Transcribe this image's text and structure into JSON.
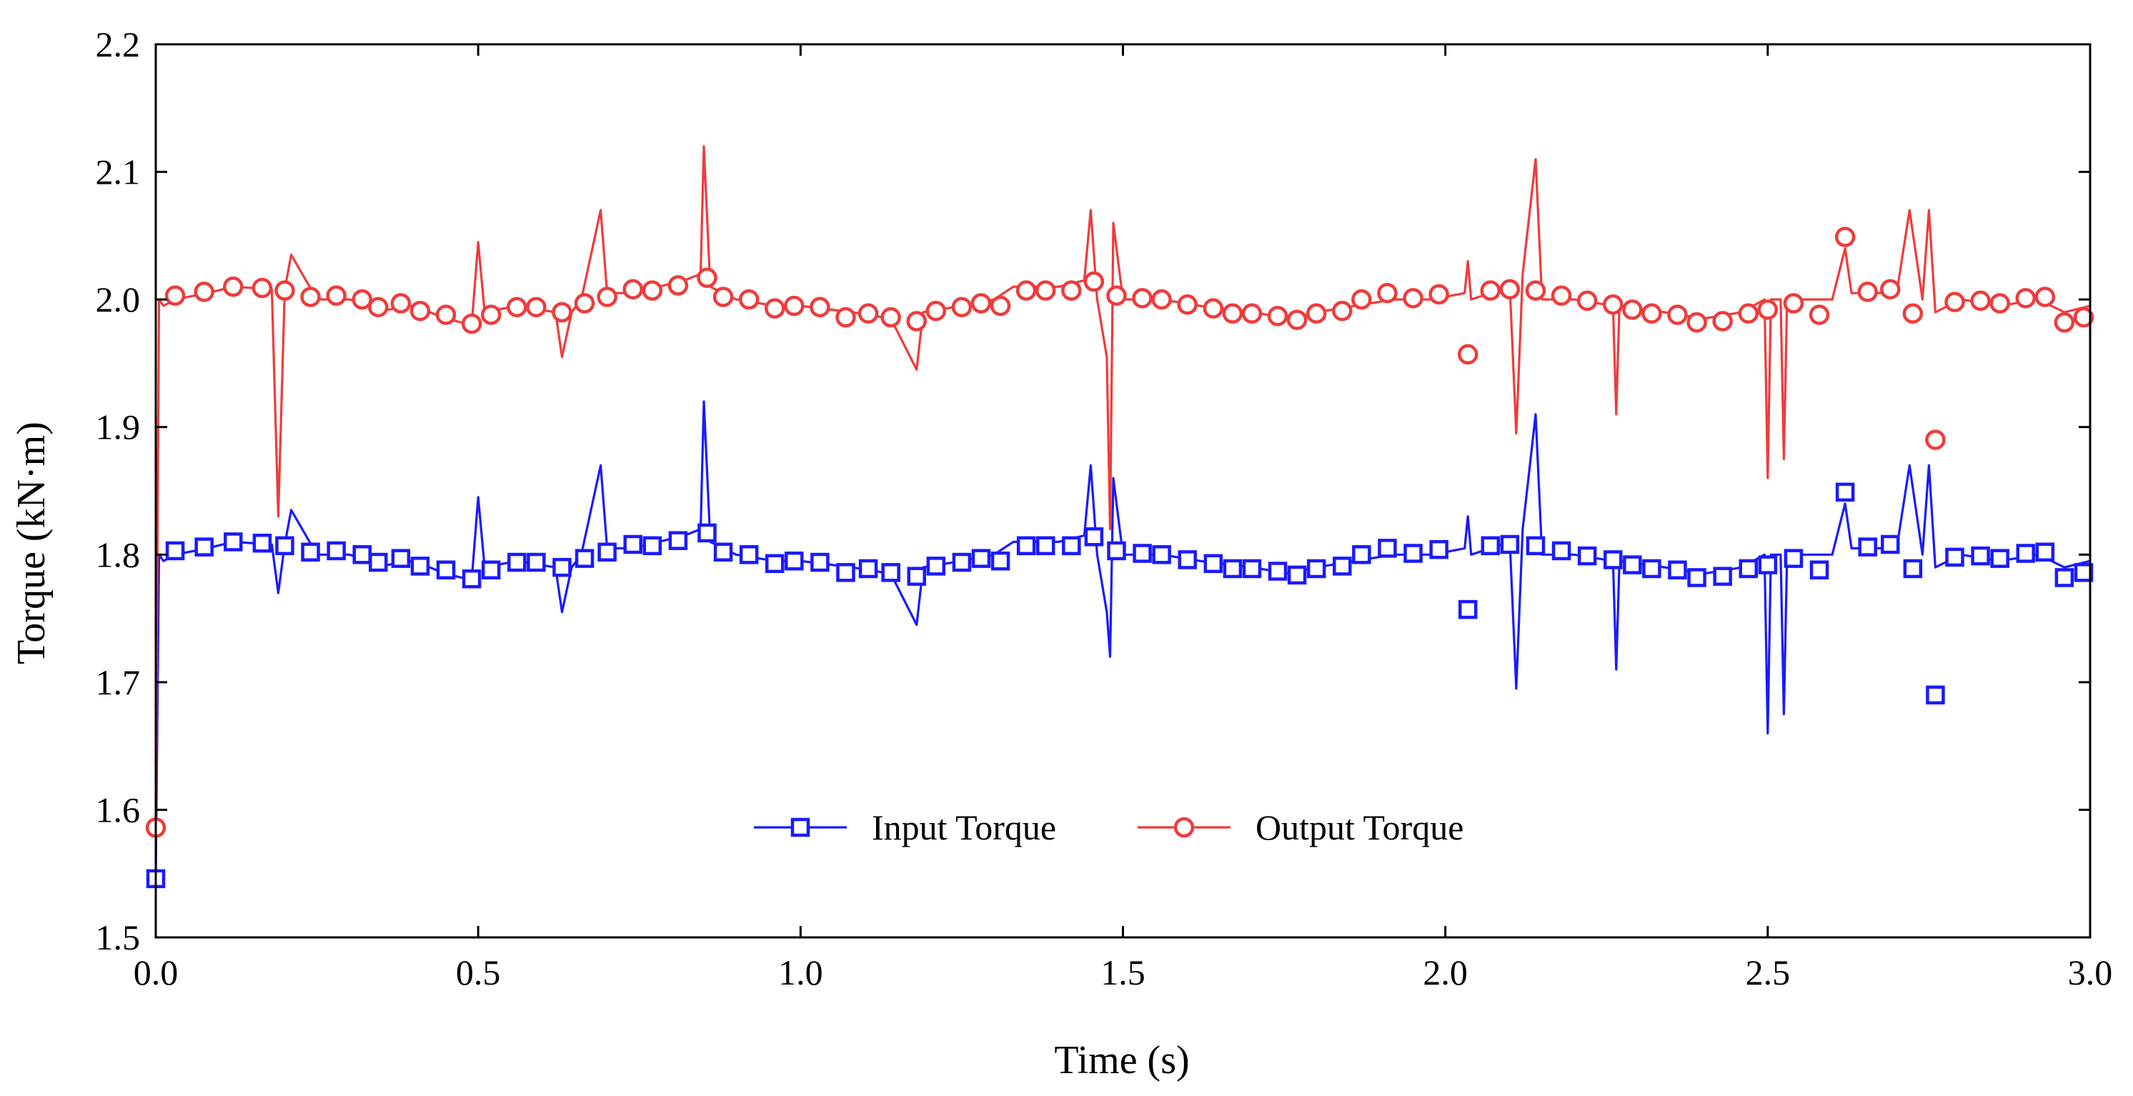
{
  "chart_data": {
    "type": "line",
    "title": "",
    "xlabel": "Time (s)",
    "ylabel": "Torque (kN·m)",
    "xlim": [
      0.0,
      3.0
    ],
    "ylim": [
      1.5,
      2.2
    ],
    "x_ticks": [
      "0.0",
      "0.5",
      "1.0",
      "1.5",
      "2.0",
      "2.5",
      "3.0"
    ],
    "y_ticks": [
      "1.5",
      "1.6",
      "1.7",
      "1.8",
      "1.9",
      "2.0",
      "2.1",
      "2.2"
    ],
    "grid": false,
    "legend_position": "bottom-center",
    "series": [
      {
        "name": "Input Torque",
        "color": "#1a1aff",
        "marker": "square",
        "line_x": [
          0.0,
          0.005,
          0.012,
          0.03,
          0.08,
          0.12,
          0.18,
          0.19,
          0.2,
          0.21,
          0.25,
          0.3,
          0.36,
          0.4,
          0.45,
          0.49,
          0.5,
          0.51,
          0.56,
          0.62,
          0.63,
          0.645,
          0.66,
          0.69,
          0.7,
          0.74,
          0.78,
          0.82,
          0.845,
          0.85,
          0.86,
          0.9,
          0.96,
          1.0,
          1.08,
          1.14,
          1.18,
          1.19,
          1.25,
          1.3,
          1.33,
          1.4,
          1.44,
          1.45,
          1.46,
          1.475,
          1.48,
          1.485,
          1.5,
          1.56,
          1.62,
          1.7,
          1.76,
          1.8,
          1.86,
          1.92,
          1.98,
          2.03,
          2.035,
          2.04,
          2.1,
          2.11,
          2.12,
          2.14,
          2.15,
          2.2,
          2.26,
          2.265,
          2.27,
          2.34,
          2.4,
          2.46,
          2.495,
          2.5,
          2.505,
          2.52,
          2.525,
          2.53,
          2.6,
          2.62,
          2.63,
          2.7,
          2.72,
          2.74,
          2.75,
          2.76,
          2.8,
          2.86,
          2.92,
          2.96,
          3.0
        ],
        "line_y": [
          1.55,
          1.8,
          1.795,
          1.8,
          1.805,
          1.81,
          1.808,
          1.77,
          1.808,
          1.835,
          1.8,
          1.8,
          1.792,
          1.795,
          1.785,
          1.78,
          1.845,
          1.79,
          1.795,
          1.79,
          1.755,
          1.79,
          1.8,
          1.87,
          1.805,
          1.805,
          1.81,
          1.815,
          1.82,
          1.92,
          1.81,
          1.8,
          1.795,
          1.795,
          1.79,
          1.785,
          1.745,
          1.79,
          1.795,
          1.8,
          1.81,
          1.81,
          1.815,
          1.87,
          1.8,
          1.755,
          1.72,
          1.86,
          1.8,
          1.8,
          1.795,
          1.79,
          1.785,
          1.79,
          1.795,
          1.8,
          1.8,
          1.805,
          1.83,
          1.8,
          1.81,
          1.695,
          1.82,
          1.91,
          1.8,
          1.8,
          1.795,
          1.71,
          1.795,
          1.79,
          1.785,
          1.79,
          1.8,
          1.66,
          1.8,
          1.8,
          1.675,
          1.8,
          1.8,
          1.84,
          1.805,
          1.805,
          1.87,
          1.8,
          1.87,
          1.79,
          1.8,
          1.795,
          1.8,
          1.79,
          1.795
        ],
        "marker_x": [
          0.0,
          0.03,
          0.075,
          0.12,
          0.165,
          0.2,
          0.24,
          0.28,
          0.32,
          0.345,
          0.38,
          0.41,
          0.45,
          0.49,
          0.52,
          0.56,
          0.59,
          0.63,
          0.665,
          0.7,
          0.74,
          0.77,
          0.81,
          0.855,
          0.88,
          0.92,
          0.96,
          0.99,
          1.03,
          1.07,
          1.105,
          1.14,
          1.18,
          1.21,
          1.25,
          1.28,
          1.31,
          1.35,
          1.38,
          1.42,
          1.455,
          1.49,
          1.53,
          1.56,
          1.6,
          1.64,
          1.67,
          1.7,
          1.74,
          1.77,
          1.8,
          1.84,
          1.87,
          1.91,
          1.95,
          1.99,
          2.035,
          2.07,
          2.1,
          2.14,
          2.18,
          2.22,
          2.26,
          2.29,
          2.32,
          2.36,
          2.39,
          2.43,
          2.47,
          2.5,
          2.54,
          2.58,
          2.62,
          2.655,
          2.69,
          2.725,
          2.76,
          2.79,
          2.83,
          2.86,
          2.9,
          2.93,
          2.96,
          2.99
        ],
        "marker_y": [
          1.546,
          1.803,
          1.806,
          1.81,
          1.809,
          1.807,
          1.802,
          1.803,
          1.8,
          1.794,
          1.797,
          1.791,
          1.788,
          1.781,
          1.788,
          1.794,
          1.794,
          1.79,
          1.797,
          1.802,
          1.808,
          1.807,
          1.811,
          1.817,
          1.802,
          1.8,
          1.793,
          1.795,
          1.794,
          1.786,
          1.789,
          1.786,
          1.783,
          1.791,
          1.794,
          1.797,
          1.795,
          1.807,
          1.807,
          1.807,
          1.814,
          1.803,
          1.801,
          1.8,
          1.796,
          1.793,
          1.789,
          1.789,
          1.787,
          1.784,
          1.789,
          1.791,
          1.8,
          1.805,
          1.801,
          1.804,
          1.757,
          1.807,
          1.808,
          1.807,
          1.803,
          1.799,
          1.796,
          1.792,
          1.789,
          1.788,
          1.782,
          1.783,
          1.789,
          1.792,
          1.797,
          1.788,
          1.849,
          1.806,
          1.808,
          1.789,
          1.69,
          1.798,
          1.799,
          1.797,
          1.801,
          1.802,
          1.782,
          1.786
        ]
      },
      {
        "name": "Output Torque",
        "color": "#ef3b3b",
        "marker": "circle",
        "line_x": [
          0.0,
          0.005,
          0.012,
          0.03,
          0.08,
          0.12,
          0.18,
          0.19,
          0.2,
          0.21,
          0.25,
          0.3,
          0.36,
          0.4,
          0.45,
          0.49,
          0.5,
          0.51,
          0.56,
          0.62,
          0.63,
          0.645,
          0.66,
          0.69,
          0.7,
          0.74,
          0.78,
          0.82,
          0.845,
          0.85,
          0.86,
          0.9,
          0.96,
          1.0,
          1.08,
          1.14,
          1.18,
          1.19,
          1.25,
          1.3,
          1.33,
          1.4,
          1.44,
          1.45,
          1.46,
          1.475,
          1.48,
          1.485,
          1.5,
          1.56,
          1.62,
          1.7,
          1.76,
          1.8,
          1.86,
          1.92,
          1.98,
          2.03,
          2.035,
          2.04,
          2.1,
          2.11,
          2.12,
          2.14,
          2.15,
          2.2,
          2.26,
          2.265,
          2.27,
          2.34,
          2.4,
          2.46,
          2.495,
          2.5,
          2.505,
          2.52,
          2.525,
          2.53,
          2.6,
          2.62,
          2.63,
          2.7,
          2.72,
          2.74,
          2.75,
          2.76,
          2.8,
          2.86,
          2.92,
          2.96,
          3.0
        ],
        "line_y": [
          1.59,
          2.0,
          1.995,
          2.0,
          2.005,
          2.01,
          2.008,
          1.83,
          2.008,
          2.035,
          2.0,
          2.0,
          1.992,
          1.995,
          1.985,
          1.98,
          2.045,
          1.99,
          1.995,
          1.99,
          1.955,
          1.99,
          2.0,
          2.07,
          2.005,
          2.005,
          2.01,
          2.015,
          2.02,
          2.12,
          2.01,
          2.0,
          1.995,
          1.995,
          1.99,
          1.985,
          1.945,
          1.99,
          1.995,
          2.0,
          2.01,
          2.01,
          2.015,
          2.07,
          2.0,
          1.955,
          1.82,
          2.06,
          2.0,
          2.0,
          1.995,
          1.99,
          1.985,
          1.99,
          1.995,
          2.0,
          2.0,
          2.005,
          2.03,
          2.0,
          2.01,
          1.895,
          2.02,
          2.11,
          2.0,
          2.0,
          1.995,
          1.91,
          1.995,
          1.99,
          1.985,
          1.99,
          2.0,
          1.86,
          2.0,
          2.0,
          1.875,
          2.0,
          2.0,
          2.04,
          2.005,
          2.005,
          2.07,
          2.0,
          2.07,
          1.99,
          2.0,
          1.995,
          2.0,
          1.99,
          1.995
        ],
        "marker_x": [
          0.0,
          0.03,
          0.075,
          0.12,
          0.165,
          0.2,
          0.24,
          0.28,
          0.32,
          0.345,
          0.38,
          0.41,
          0.45,
          0.49,
          0.52,
          0.56,
          0.59,
          0.63,
          0.665,
          0.7,
          0.74,
          0.77,
          0.81,
          0.855,
          0.88,
          0.92,
          0.96,
          0.99,
          1.03,
          1.07,
          1.105,
          1.14,
          1.18,
          1.21,
          1.25,
          1.28,
          1.31,
          1.35,
          1.38,
          1.42,
          1.455,
          1.49,
          1.53,
          1.56,
          1.6,
          1.64,
          1.67,
          1.7,
          1.74,
          1.77,
          1.8,
          1.84,
          1.87,
          1.91,
          1.95,
          1.99,
          2.035,
          2.07,
          2.1,
          2.14,
          2.18,
          2.22,
          2.26,
          2.29,
          2.32,
          2.36,
          2.39,
          2.43,
          2.47,
          2.5,
          2.54,
          2.58,
          2.62,
          2.655,
          2.69,
          2.725,
          2.76,
          2.79,
          2.83,
          2.86,
          2.9,
          2.93,
          2.96,
          2.99
        ],
        "marker_y": [
          1.586,
          2.003,
          2.006,
          2.01,
          2.009,
          2.007,
          2.002,
          2.003,
          2.0,
          1.994,
          1.997,
          1.991,
          1.988,
          1.981,
          1.988,
          1.994,
          1.994,
          1.99,
          1.997,
          2.002,
          2.008,
          2.007,
          2.011,
          2.017,
          2.002,
          2.0,
          1.993,
          1.995,
          1.994,
          1.986,
          1.989,
          1.986,
          1.983,
          1.991,
          1.994,
          1.997,
          1.995,
          2.007,
          2.007,
          2.007,
          2.014,
          2.003,
          2.001,
          2.0,
          1.996,
          1.993,
          1.989,
          1.989,
          1.987,
          1.984,
          1.989,
          1.991,
          2.0,
          2.005,
          2.001,
          2.004,
          1.957,
          2.007,
          2.008,
          2.007,
          2.003,
          1.999,
          1.996,
          1.992,
          1.989,
          1.988,
          1.982,
          1.983,
          1.989,
          1.992,
          1.997,
          1.988,
          2.049,
          2.006,
          2.008,
          1.989,
          1.89,
          1.998,
          1.999,
          1.997,
          2.001,
          2.002,
          1.982,
          1.986
        ]
      }
    ]
  }
}
